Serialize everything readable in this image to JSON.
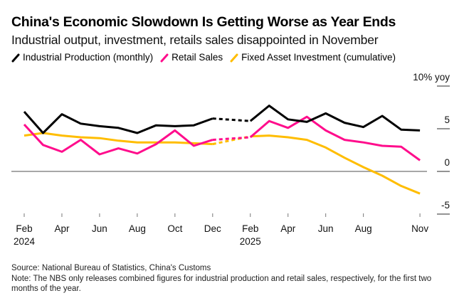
{
  "title": "China's Economic Slowdown Is Getting Worse as Year Ends",
  "subtitle": "Industrial output, investment, retails sales disappointed in November",
  "legend": [
    {
      "label": "Industrial Production (monthly)",
      "color": "#000000"
    },
    {
      "label": "Retail Sales",
      "color": "#ff0d8c"
    },
    {
      "label": "Fixed Asset Investment (cumulative)",
      "color": "#ffbd00"
    }
  ],
  "footer": {
    "source": "Source: National Bureau of Statistics, China's Customs",
    "note": "Note: The NBS only releases combined figures for industrial production and retail sales, respectively, for the first two months of the year."
  },
  "chart_data": {
    "type": "line",
    "title": "China's Economic Slowdown Is Getting Worse as Year Ends",
    "subtitle": "Industrial output, investment, retails sales disappointed in November",
    "xlabel": "",
    "ylabel": "% yoy",
    "ylim": [
      -5,
      10
    ],
    "yticks": [
      {
        "value": 10,
        "label": "10% yoy"
      },
      {
        "value": 5,
        "label": "5"
      },
      {
        "value": 0,
        "label": "0"
      },
      {
        "value": -5,
        "label": "-5"
      }
    ],
    "x": [
      "2024-02",
      "2024-03",
      "2024-04",
      "2024-05",
      "2024-06",
      "2024-07",
      "2024-08",
      "2024-09",
      "2024-10",
      "2024-11",
      "2024-12",
      "2025-02",
      "2025-03",
      "2025-04",
      "2025-05",
      "2025-06",
      "2025-07",
      "2025-08",
      "2025-09",
      "2025-10",
      "2025-11"
    ],
    "xticks": [
      {
        "month": "2024-02",
        "label": "Feb",
        "year": "2024"
      },
      {
        "month": "2024-04",
        "label": "Apr",
        "year": ""
      },
      {
        "month": "2024-06",
        "label": "Jun",
        "year": ""
      },
      {
        "month": "2024-08",
        "label": "Aug",
        "year": ""
      },
      {
        "month": "2024-10",
        "label": "Oct",
        "year": ""
      },
      {
        "month": "2024-12",
        "label": "Dec",
        "year": ""
      },
      {
        "month": "2025-02",
        "label": "Feb",
        "year": "2025"
      },
      {
        "month": "2025-04",
        "label": "Apr",
        "year": ""
      },
      {
        "month": "2025-06",
        "label": "Jun",
        "year": ""
      },
      {
        "month": "2025-08",
        "label": "Aug",
        "year": ""
      },
      {
        "month": "2025-11",
        "label": "Nov",
        "year": ""
      }
    ],
    "dashed_segment": [
      "2024-12",
      "2025-02"
    ],
    "legend_position": "top-left",
    "grid": false,
    "series": [
      {
        "name": "Industrial Production (monthly)",
        "color": "#000000",
        "values": [
          7.0,
          4.5,
          6.7,
          5.6,
          5.3,
          5.1,
          4.5,
          5.4,
          5.3,
          5.4,
          6.2,
          5.9,
          7.7,
          6.1,
          5.8,
          6.8,
          5.7,
          5.2,
          6.5,
          4.9,
          4.8
        ]
      },
      {
        "name": "Retail Sales",
        "color": "#ff0d8c",
        "values": [
          5.5,
          3.1,
          2.3,
          3.7,
          2.0,
          2.7,
          2.1,
          3.2,
          4.8,
          3.0,
          3.7,
          4.0,
          5.9,
          5.1,
          6.4,
          4.8,
          3.7,
          3.4,
          3.0,
          2.9,
          1.3
        ]
      },
      {
        "name": "Fixed Asset Investment (cumulative)",
        "color": "#ffbd00",
        "values": [
          4.2,
          4.5,
          4.2,
          4.0,
          3.9,
          3.6,
          3.4,
          3.4,
          3.4,
          3.3,
          3.2,
          4.1,
          4.2,
          4.0,
          3.7,
          2.8,
          1.6,
          0.5,
          -0.5,
          -1.7,
          -2.6
        ]
      }
    ]
  }
}
